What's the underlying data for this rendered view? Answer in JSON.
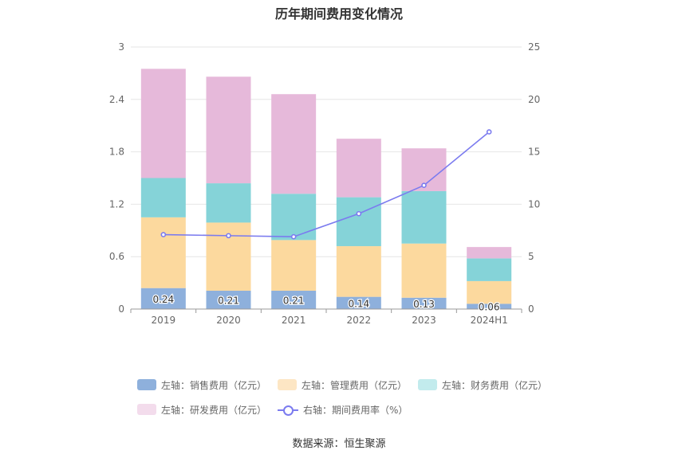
{
  "title": "历年期间费用变化情况",
  "source": "数据来源：恒生聚源",
  "chart_data": {
    "type": "bar",
    "stacked": true,
    "categories": [
      "2019",
      "2020",
      "2021",
      "2022",
      "2023",
      "2024H1"
    ],
    "left_axis": {
      "ylim": [
        0,
        3
      ],
      "ticks": [
        "0",
        "0.6",
        "1.2",
        "1.8",
        "2.4",
        "3"
      ]
    },
    "right_axis": {
      "ylim": [
        0,
        25
      ],
      "ticks": [
        "0",
        "5",
        "10",
        "15",
        "20",
        "25"
      ]
    },
    "series": [
      {
        "name": "左轴：销售费用（亿元）",
        "type": "bar",
        "color": "#8eb0dc",
        "values": [
          0.24,
          0.21,
          0.21,
          0.14,
          0.13,
          0.06
        ],
        "labels": [
          "0.24",
          "0.21",
          "0.21",
          "0.14",
          "0.13",
          "0.06"
        ]
      },
      {
        "name": "左轴：管理费用（亿元）",
        "type": "bar",
        "color": "#fcd99e",
        "values": [
          0.81,
          0.78,
          0.58,
          0.58,
          0.62,
          0.26
        ]
      },
      {
        "name": "左轴：财务费用（亿元）",
        "type": "bar",
        "color": "#85d3d8",
        "values": [
          0.45,
          0.45,
          0.53,
          0.56,
          0.6,
          0.26
        ]
      },
      {
        "name": "左轴：研发费用（亿元）",
        "type": "bar",
        "color": "#e6b9da",
        "values": [
          1.25,
          1.22,
          1.14,
          0.67,
          0.49,
          0.13
        ]
      },
      {
        "name": "右轴：期间费用率（%）",
        "type": "line",
        "axis": "right",
        "color": "#7b7bef",
        "values": [
          7.1,
          7.0,
          6.9,
          9.1,
          11.8,
          16.9
        ]
      }
    ],
    "legend_position": "bottom",
    "grid": true
  },
  "legend_colors": {
    "sales": "#8eb0dc",
    "admin": "#fde6c4",
    "finance": "#c2ebed",
    "rd": "#f3dcec"
  }
}
